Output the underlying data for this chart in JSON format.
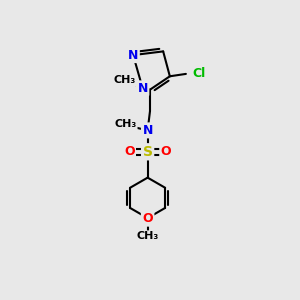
{
  "background_color": "#e8e8e8",
  "bond_color": "#000000",
  "bond_width": 1.5,
  "atom_colors": {
    "N": "#0000ee",
    "O": "#ff0000",
    "S": "#bbbb00",
    "Cl": "#00bb00",
    "C": "#000000"
  },
  "font_size": 9,
  "fig_size": [
    3.0,
    3.0
  ],
  "dpi": 100,
  "xlim": [
    0,
    10
  ],
  "ylim": [
    0,
    10
  ]
}
